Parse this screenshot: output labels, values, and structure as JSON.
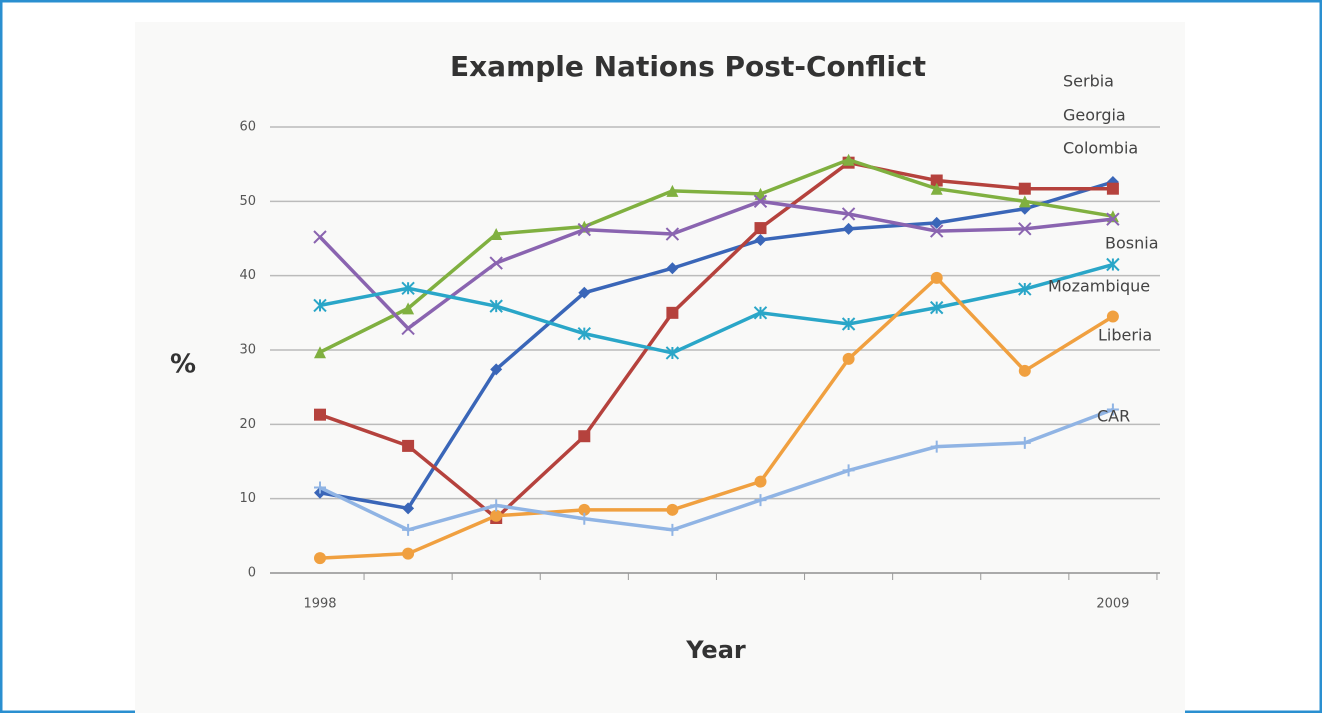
{
  "chart_data": {
    "type": "line",
    "title": "Example Nations Post-Conflict",
    "x_label": "Year",
    "y_label": "%",
    "categories": [
      "1998",
      null,
      null,
      null,
      null,
      null,
      null,
      null,
      null,
      "2009"
    ],
    "ylim": [
      0,
      60
    ],
    "yticks": [
      0,
      10,
      20,
      30,
      40,
      50,
      60
    ],
    "grid": true,
    "series": [
      {
        "name": "Serbia",
        "color": "#3a66b8",
        "marker": "diamond",
        "values": [
          10.8,
          8.7,
          27.4,
          37.7,
          41,
          44.8,
          46.3,
          47.1,
          49,
          52.6
        ]
      },
      {
        "name": "Georgia",
        "color": "#b5423d",
        "marker": "square",
        "values": [
          21.3,
          17.1,
          7.4,
          18.4,
          35,
          46.4,
          55.2,
          52.8,
          51.7,
          51.7
        ]
      },
      {
        "name": "Colombia",
        "color": "#80b040",
        "marker": "triangle",
        "values": [
          29.7,
          35.6,
          45.6,
          46.6,
          51.4,
          51,
          55.6,
          51.7,
          50,
          48
        ]
      },
      {
        "name": "Bosnia",
        "color": "#8a64b0",
        "marker": "x",
        "values": [
          45.2,
          32.9,
          41.7,
          46.2,
          45.6,
          50,
          48.3,
          46,
          46.3,
          47.6
        ]
      },
      {
        "name": "Mozambique",
        "color": "#2aa6c8",
        "marker": "star",
        "values": [
          36,
          38.3,
          35.9,
          32.2,
          29.6,
          35,
          33.5,
          35.7,
          38.2,
          41.5
        ]
      },
      {
        "name": "Liberia",
        "color": "#f0a040",
        "marker": "circle",
        "values": [
          2,
          2.6,
          7.7,
          8.5,
          8.5,
          12.3,
          28.8,
          39.7,
          27.2,
          34.5
        ]
      },
      {
        "name": "CAR",
        "color": "#90b4e4",
        "marker": "plus",
        "values": [
          11.5,
          5.8,
          9.1,
          7.3,
          5.8,
          9.8,
          13.8,
          17,
          17.5,
          22
        ]
      }
    ]
  }
}
